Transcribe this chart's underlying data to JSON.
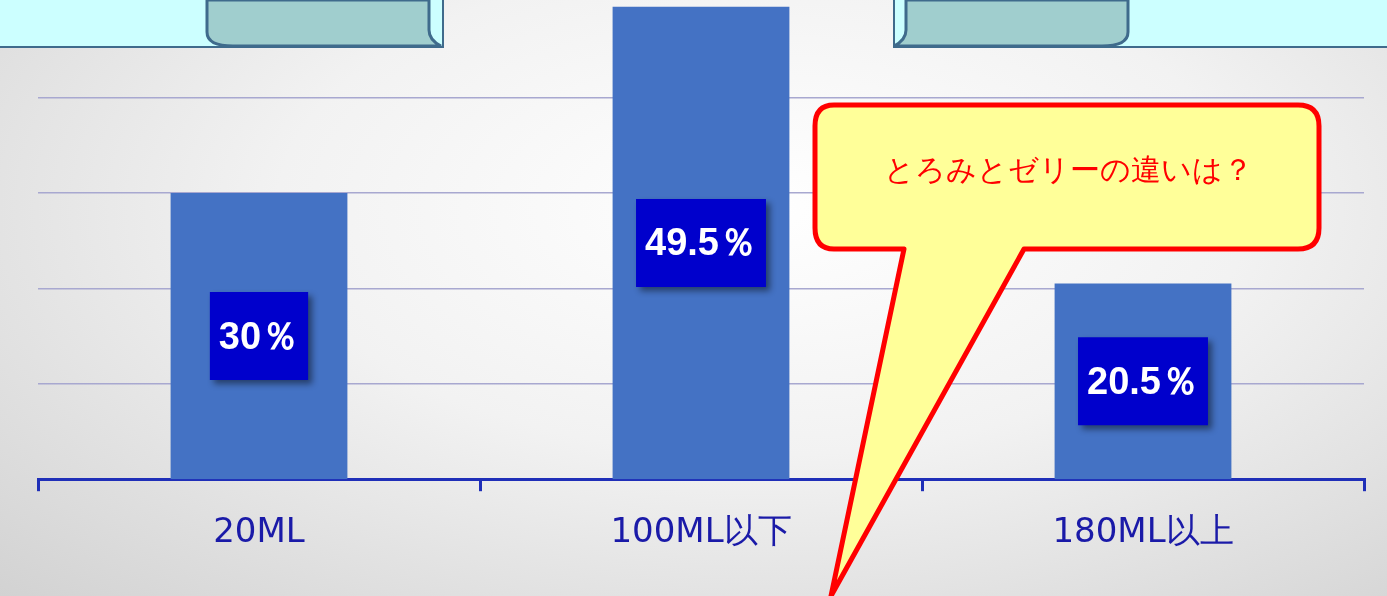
{
  "chart_data": {
    "type": "bar",
    "categories": [
      "20ML",
      "100ML以下",
      "180ML以上"
    ],
    "values": [
      30,
      49.5,
      20.5
    ],
    "value_labels": [
      "30％",
      "49.5％",
      "20.5％"
    ],
    "color": "#4472c4",
    "ylim": [
      0,
      50
    ],
    "yticks": [
      {
        "value": 10,
        "label": null
      },
      {
        "value": 20,
        "label": null
      },
      {
        "value": 30,
        "label": null
      },
      {
        "value": 40,
        "label": null
      }
    ],
    "grid": "y",
    "tick_labels": "x",
    "legend": false,
    "annotations": [
      "とろみとゼリーの違いは？"
    ]
  }
}
